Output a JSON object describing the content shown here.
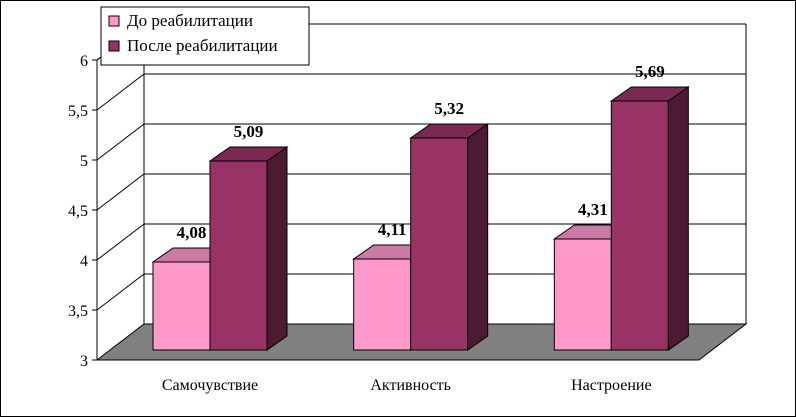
{
  "chart_data": {
    "type": "bar",
    "categories": [
      "Самочувствие",
      "Активность",
      "Настроение"
    ],
    "series": [
      {
        "name": "До реабилитации",
        "values": [
          4.08,
          4.11,
          4.31
        ],
        "labels": [
          "4,08",
          "4,11",
          "4,31"
        ],
        "color": "#ff99cc"
      },
      {
        "name": "После реабилитации",
        "values": [
          5.09,
          5.32,
          5.69
        ],
        "labels": [
          "5,09",
          "5,32",
          "5,69"
        ],
        "color": "#993366"
      }
    ],
    "ylim": [
      3,
      6
    ],
    "yticks": [
      3,
      3.5,
      4,
      4.5,
      5,
      5.5,
      6
    ],
    "ytick_labels": [
      "3",
      "3,5",
      "4",
      "4,5",
      "5",
      "5,5",
      "6"
    ],
    "grid": true,
    "three_d": true,
    "legend_position": "top-left",
    "title": "",
    "xlabel": "",
    "ylabel": ""
  }
}
